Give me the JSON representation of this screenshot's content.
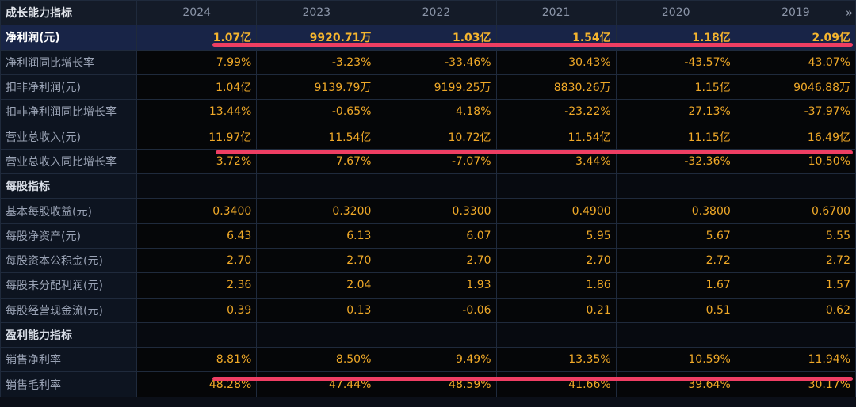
{
  "header": {
    "label": "成长能力指标",
    "years": [
      "2024",
      "2023",
      "2022",
      "2021",
      "2020",
      "2019"
    ],
    "more_icon": "»"
  },
  "rows": [
    {
      "label": "净利润(元)",
      "values": [
        "1.07亿",
        "9920.71万",
        "1.03亿",
        "1.54亿",
        "1.18亿",
        "2.09亿"
      ],
      "style": "highlight"
    },
    {
      "label": "净利润同比增长率",
      "values": [
        "7.99%",
        "-3.23%",
        "-33.46%",
        "30.43%",
        "-43.57%",
        "43.07%"
      ]
    },
    {
      "label": "扣非净利润(元)",
      "values": [
        "1.04亿",
        "9139.79万",
        "9199.25万",
        "8830.26万",
        "1.15亿",
        "9046.88万"
      ]
    },
    {
      "label": "扣非净利润同比增长率",
      "values": [
        "13.44%",
        "-0.65%",
        "4.18%",
        "-23.22%",
        "27.13%",
        "-37.97%"
      ]
    },
    {
      "label": "营业总收入(元)",
      "values": [
        "11.97亿",
        "11.54亿",
        "10.72亿",
        "11.54亿",
        "11.15亿",
        "16.49亿"
      ]
    },
    {
      "label": "营业总收入同比增长率",
      "values": [
        "3.72%",
        "7.67%",
        "-7.07%",
        "3.44%",
        "-32.36%",
        "10.50%"
      ]
    },
    {
      "label": "每股指标",
      "values": [
        "",
        "",
        "",
        "",
        "",
        ""
      ],
      "style": "section"
    },
    {
      "label": "基本每股收益(元)",
      "values": [
        "0.3400",
        "0.3200",
        "0.3300",
        "0.4900",
        "0.3800",
        "0.6700"
      ]
    },
    {
      "label": "每股净资产(元)",
      "values": [
        "6.43",
        "6.13",
        "6.07",
        "5.95",
        "5.67",
        "5.55"
      ]
    },
    {
      "label": "每股资本公积金(元)",
      "values": [
        "2.70",
        "2.70",
        "2.70",
        "2.70",
        "2.72",
        "2.72"
      ]
    },
    {
      "label": "每股未分配利润(元)",
      "values": [
        "2.36",
        "2.04",
        "1.93",
        "1.86",
        "1.67",
        "1.57"
      ]
    },
    {
      "label": "每股经营现金流(元)",
      "values": [
        "0.39",
        "0.13",
        "-0.06",
        "0.21",
        "0.51",
        "0.62"
      ]
    },
    {
      "label": "盈利能力指标",
      "values": [
        "",
        "",
        "",
        "",
        "",
        ""
      ],
      "style": "section"
    },
    {
      "label": "销售净利率",
      "values": [
        "8.81%",
        "8.50%",
        "9.49%",
        "13.35%",
        "10.59%",
        "11.94%"
      ]
    },
    {
      "label": "销售毛利率",
      "values": [
        "48.28%",
        "47.44%",
        "48.59%",
        "41.66%",
        "39.64%",
        "30.17%"
      ]
    }
  ],
  "colors": {
    "value": "#f0a928",
    "label": "#9aa3b5",
    "highlight_bg": "#182447",
    "marker": "#ef3e63"
  }
}
